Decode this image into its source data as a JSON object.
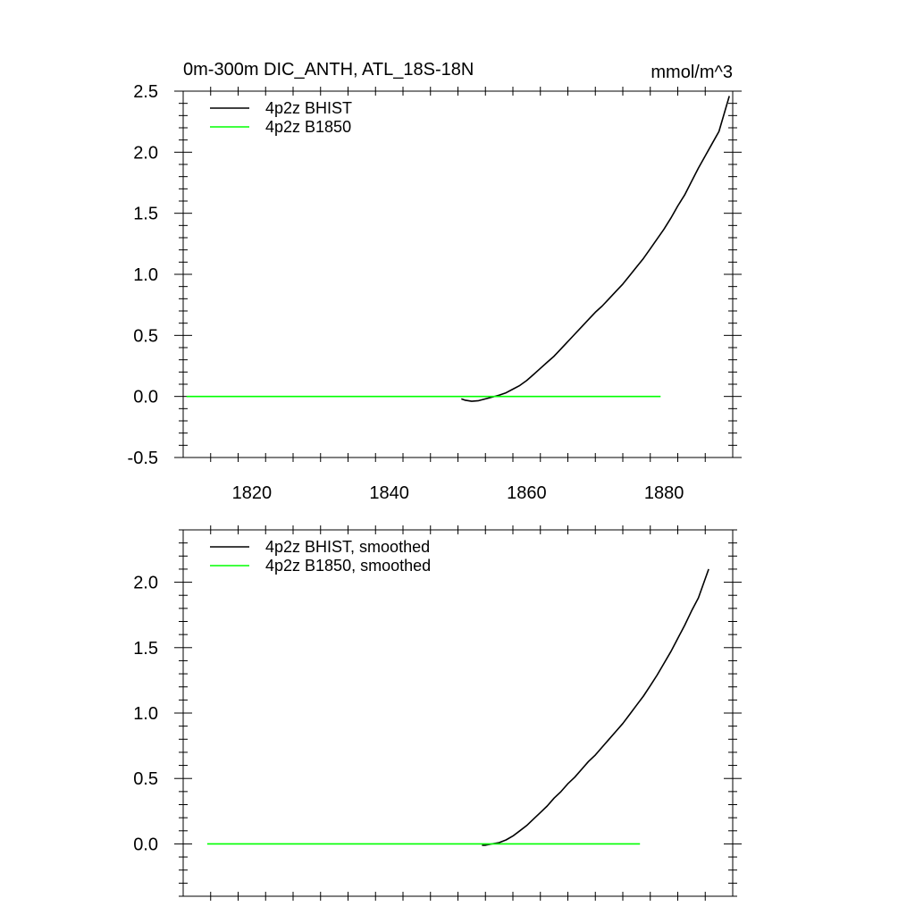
{
  "chart_data": [
    {
      "type": "line",
      "title": "0m-300m DIC_ANTH, ATL_18S-18N",
      "units": "mmol/m^3",
      "xlim": [
        1810,
        1890
      ],
      "ylim": [
        -0.5,
        2.5
      ],
      "x_major_ticks": [
        1820,
        1840,
        1860,
        1880
      ],
      "x_minor_step": 4,
      "y_major_ticks": [
        -0.5,
        0.0,
        0.5,
        1.0,
        1.5,
        2.0,
        2.5
      ],
      "y_tick_labels": [
        "-0.5",
        "0.0",
        "0.5",
        "1.0",
        "1.5",
        "2.0",
        "2.5"
      ],
      "y_minor_step": 0.1,
      "show_x_tick_labels": true,
      "legend": "top-left",
      "series": [
        {
          "name": "4p2z BHIST",
          "color": "#000000",
          "x": [
            1850.5,
            1851,
            1852,
            1853,
            1854,
            1855,
            1856,
            1857,
            1858,
            1859,
            1860,
            1861,
            1862,
            1863,
            1864,
            1865,
            1866,
            1867,
            1868,
            1869,
            1870,
            1871,
            1872,
            1873,
            1874,
            1875,
            1876,
            1877,
            1878,
            1879,
            1880,
            1881,
            1882,
            1883,
            1884,
            1885,
            1886,
            1887,
            1888,
            1889.5
          ],
          "y": [
            -0.02,
            -0.03,
            -0.04,
            -0.035,
            -0.02,
            -0.005,
            0.01,
            0.03,
            0.06,
            0.09,
            0.13,
            0.18,
            0.23,
            0.28,
            0.33,
            0.39,
            0.45,
            0.51,
            0.57,
            0.63,
            0.69,
            0.74,
            0.8,
            0.86,
            0.92,
            0.99,
            1.06,
            1.13,
            1.21,
            1.29,
            1.37,
            1.46,
            1.56,
            1.65,
            1.76,
            1.87,
            1.97,
            2.07,
            2.17,
            2.46
          ]
        },
        {
          "name": "4p2z B1850",
          "color": "#00ff00",
          "x": [
            1810.5,
            1879.5
          ],
          "y": [
            0.0,
            0.0
          ]
        }
      ]
    },
    {
      "type": "line",
      "xlim": [
        1810,
        1890
      ],
      "ylim": [
        -0.4,
        2.4
      ],
      "x_major_ticks": [
        1820,
        1840,
        1860,
        1880
      ],
      "x_minor_step": 4,
      "y_major_ticks": [
        0.0,
        0.5,
        1.0,
        1.5,
        2.0
      ],
      "y_tick_labels": [
        "0.0",
        "0.5",
        "1.0",
        "1.5",
        "2.0"
      ],
      "y_minor_step": 0.1,
      "show_x_tick_labels": false,
      "legend": "top-left",
      "series": [
        {
          "name": "4p2z BHIST, smoothed",
          "color": "#000000",
          "x": [
            1853.5,
            1854,
            1855,
            1856,
            1857,
            1858,
            1859,
            1860,
            1861,
            1862,
            1863,
            1864,
            1865,
            1866,
            1867,
            1868,
            1869,
            1870,
            1871,
            1872,
            1873,
            1874,
            1875,
            1876,
            1877,
            1878,
            1879,
            1880,
            1881,
            1882,
            1883,
            1884,
            1885,
            1886.5
          ],
          "y": [
            -0.01,
            -0.01,
            0.0,
            0.01,
            0.03,
            0.06,
            0.1,
            0.14,
            0.19,
            0.24,
            0.29,
            0.35,
            0.4,
            0.46,
            0.51,
            0.57,
            0.63,
            0.68,
            0.74,
            0.8,
            0.86,
            0.92,
            0.99,
            1.06,
            1.13,
            1.21,
            1.29,
            1.38,
            1.47,
            1.57,
            1.67,
            1.78,
            1.88,
            2.1
          ]
        },
        {
          "name": "4p2z B1850, smoothed",
          "color": "#00ff00",
          "x": [
            1813.5,
            1876.5
          ],
          "y": [
            0.0,
            0.0
          ]
        }
      ]
    }
  ]
}
